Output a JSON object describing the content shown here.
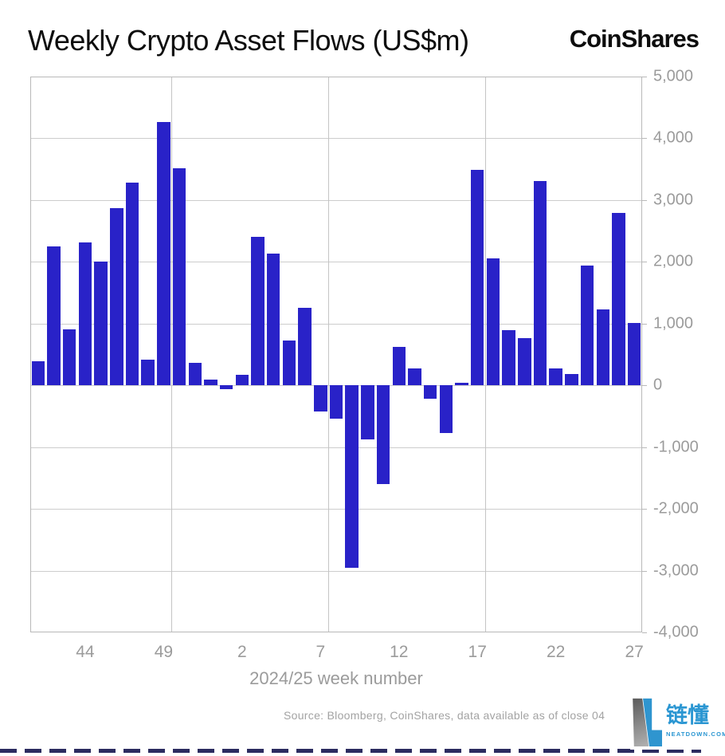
{
  "header": {
    "title": "Weekly Crypto Asset Flows (US$m)",
    "brand": "CoinShares"
  },
  "chart_data": {
    "type": "bar",
    "title": "Weekly Crypto Asset Flows (US$m)",
    "xlabel": "2024/25 week number",
    "ylabel": "",
    "unit": "US$m",
    "ylim": [
      -4000,
      5000
    ],
    "grid": true,
    "legend": "none",
    "bar_color": "#2922c8",
    "categories": [
      "41",
      "42",
      "43",
      "44",
      "45",
      "46",
      "47",
      "48",
      "49",
      "50",
      "51",
      "52",
      "1",
      "2",
      "3",
      "4",
      "5",
      "6",
      "7",
      "8",
      "9",
      "10",
      "11",
      "12",
      "13",
      "14",
      "15",
      "16",
      "17",
      "18",
      "19",
      "20",
      "21",
      "22",
      "23",
      "24",
      "25",
      "26",
      "27"
    ],
    "values": [
      395,
      2250,
      910,
      2320,
      2000,
      2870,
      3285,
      410,
      4260,
      3510,
      365,
      90,
      -65,
      175,
      2405,
      2130,
      730,
      1250,
      -420,
      -540,
      -2950,
      -870,
      -1600,
      625,
      280,
      -215,
      -775,
      40,
      3490,
      2050,
      890,
      765,
      3310,
      270,
      185,
      1940,
      1230,
      2790,
      1015
    ],
    "yticks": [
      {
        "value": 5000,
        "label": "5,000"
      },
      {
        "value": 4000,
        "label": "4,000"
      },
      {
        "value": 3000,
        "label": "3,000"
      },
      {
        "value": 2000,
        "label": "2,000"
      },
      {
        "value": 1000,
        "label": "1,000"
      },
      {
        "value": 0,
        "label": "0"
      },
      {
        "value": -1000,
        "label": "-1,000"
      },
      {
        "value": -2000,
        "label": "-2,000"
      },
      {
        "value": -3000,
        "label": "-3,000"
      },
      {
        "value": -4000,
        "label": "-4,000"
      }
    ],
    "xticks": [
      {
        "index": 3,
        "label": "44"
      },
      {
        "index": 8,
        "label": "49"
      },
      {
        "index": 13,
        "label": "2"
      },
      {
        "index": 18,
        "label": "7"
      },
      {
        "index": 23,
        "label": "12"
      },
      {
        "index": 28,
        "label": "17"
      },
      {
        "index": 33,
        "label": "22"
      },
      {
        "index": 38,
        "label": "27"
      }
    ],
    "vgrid_boundaries": [
      9,
      19,
      29
    ]
  },
  "footer": {
    "source": "Source: Bloomberg, CoinShares, data available as of close 04"
  },
  "watermark": {
    "brand": "链懂",
    "domain": "NEATDOWN.COM"
  }
}
